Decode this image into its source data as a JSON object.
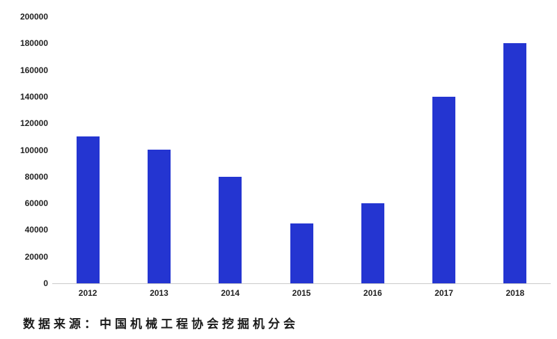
{
  "source_note": "数据来源：中国机械工程协会挖掘机分会",
  "chart_data": {
    "type": "bar",
    "title": "",
    "xlabel": "",
    "ylabel": "",
    "categories": [
      "2012",
      "2013",
      "2014",
      "2015",
      "2016",
      "2017",
      "2018"
    ],
    "values": [
      110000,
      100000,
      80000,
      45000,
      60000,
      140000,
      180000
    ],
    "ylim": [
      0,
      200000
    ],
    "ytick_step": 20000,
    "ytick_labels": [
      "0",
      "20000",
      "40000",
      "60000",
      "80000",
      "100000",
      "120000",
      "140000",
      "160000",
      "180000",
      "200000"
    ],
    "bar_color": "#2435d1",
    "axis_line_color": "#c9c9c9",
    "grid": false,
    "legend": "none"
  }
}
